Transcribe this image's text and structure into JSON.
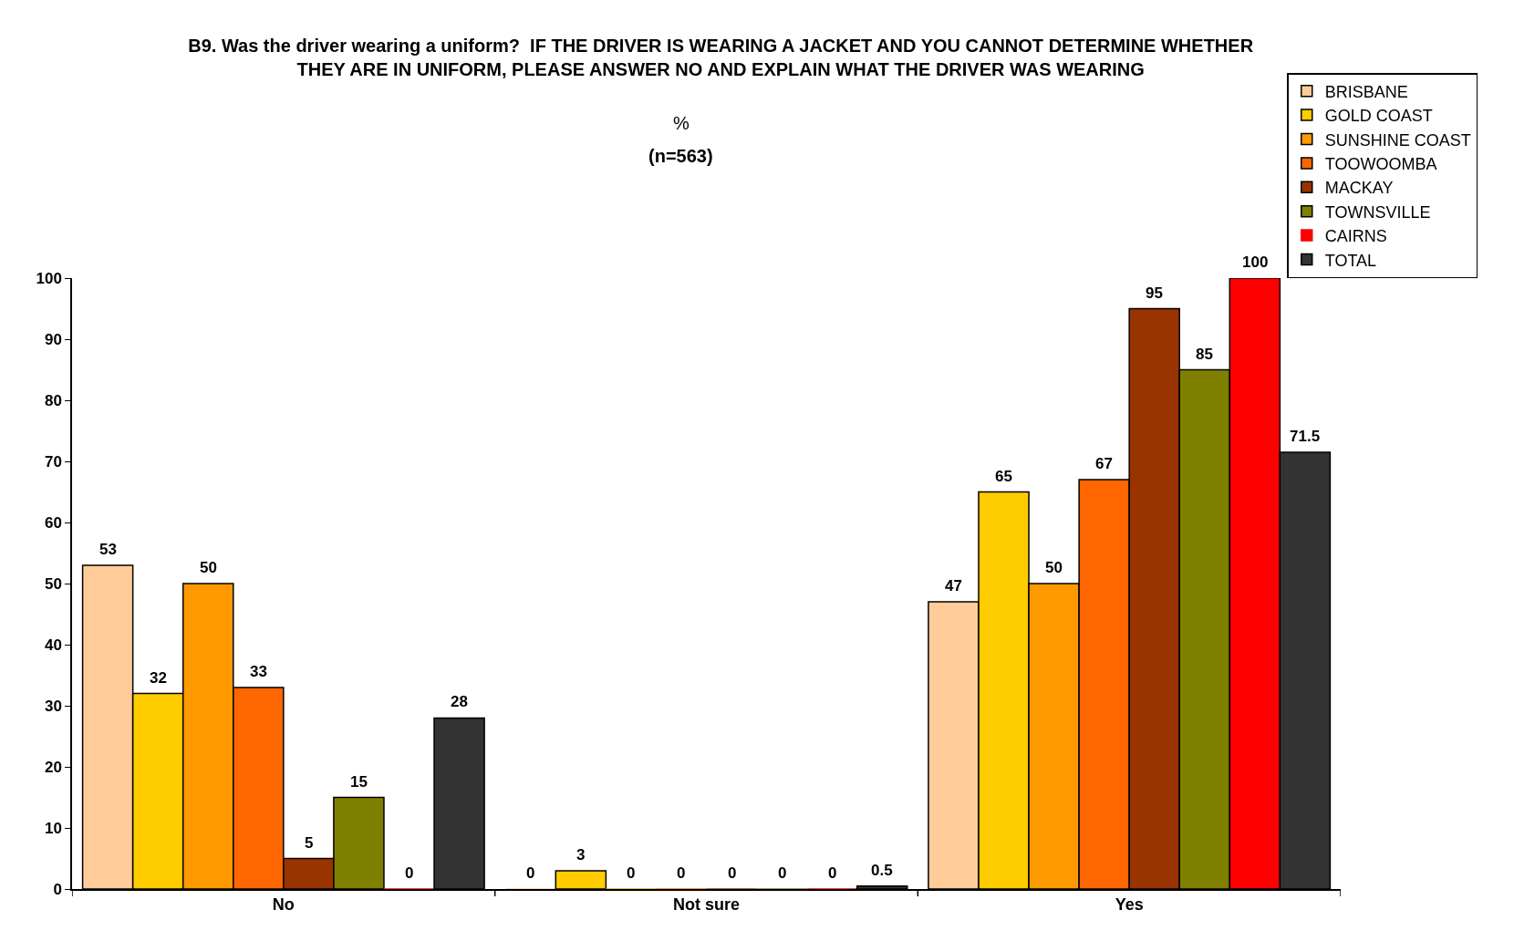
{
  "chart_data": {
    "type": "bar",
    "title": "B9. Was the driver wearing a uniform?  IF THE DRIVER IS WEARING A JACKET AND YOU CANNOT DETERMINE WHETHER THEY ARE IN UNIFORM, PLEASE ANSWER NO AND EXPLAIN WHAT THE DRIVER WAS WEARING",
    "subtitle": "%",
    "annotations": [
      "(n=563)"
    ],
    "categories": [
      "No",
      "Not sure",
      "Yes"
    ],
    "series": [
      {
        "name": "BRISBANE",
        "color": "#ffcc99",
        "values": [
          53,
          0,
          47
        ]
      },
      {
        "name": "GOLD COAST",
        "color": "#ffcc00",
        "values": [
          32,
          3,
          65
        ]
      },
      {
        "name": "SUNSHINE COAST",
        "color": "#ff9900",
        "values": [
          50,
          0,
          50
        ]
      },
      {
        "name": "TOOWOOMBA",
        "color": "#ff6600",
        "values": [
          33,
          0,
          67
        ]
      },
      {
        "name": "MACKAY",
        "color": "#993300",
        "values": [
          5,
          0,
          95
        ]
      },
      {
        "name": "TOWNSVILLE",
        "color": "#808000",
        "values": [
          15,
          0,
          85
        ]
      },
      {
        "name": "CAIRNS",
        "color": "#ff0000",
        "values": [
          0,
          0,
          100
        ]
      },
      {
        "name": "TOTAL",
        "color": "#333333",
        "values": [
          28,
          0.5,
          71.5
        ]
      }
    ],
    "ylim": [
      0,
      100
    ],
    "yticks": [
      0,
      10,
      20,
      30,
      40,
      50,
      60,
      70,
      80,
      90,
      100
    ],
    "grid": false,
    "legend": "top right",
    "data_labels": true
  }
}
